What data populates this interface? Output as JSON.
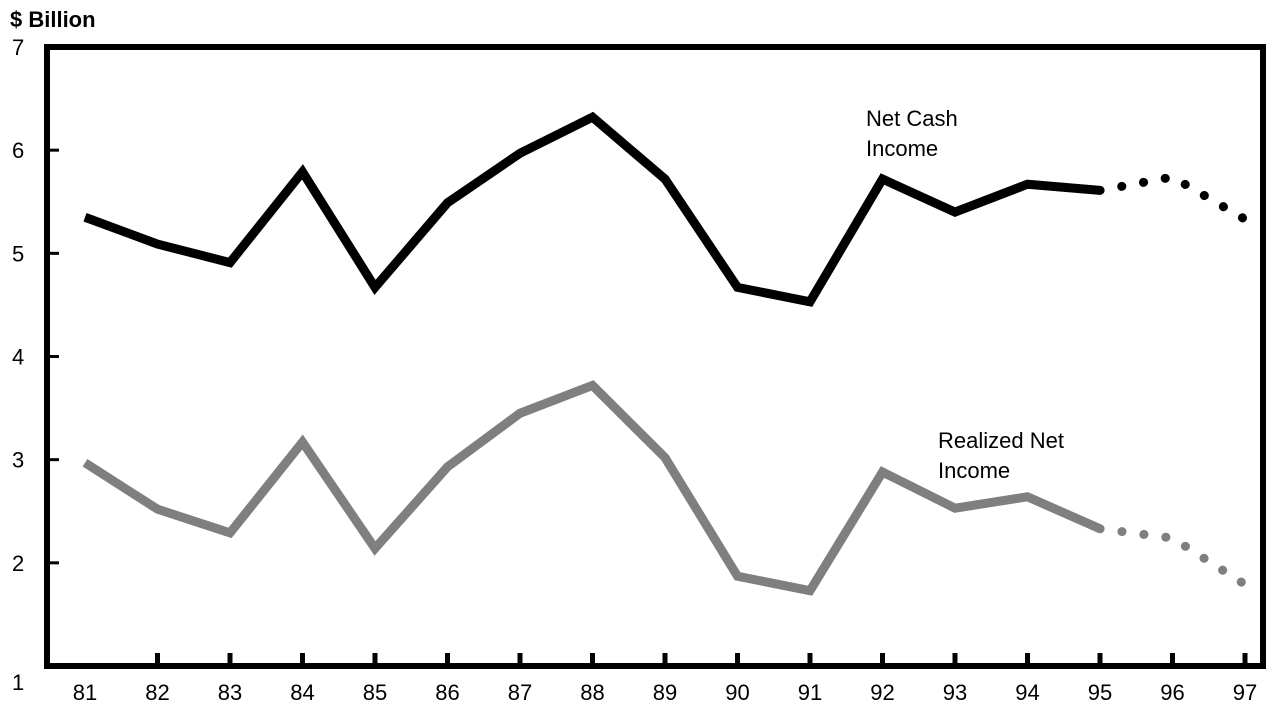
{
  "chart_data": {
    "type": "line",
    "ylabel": "$ Billion",
    "xlabel": "",
    "title": "",
    "ylim": [
      1,
      7
    ],
    "yticks": [
      "1",
      "2",
      "3",
      "4",
      "5",
      "6",
      "7"
    ],
    "x": [
      "81",
      "82",
      "83",
      "84",
      "85",
      "86",
      "87",
      "88",
      "89",
      "90",
      "91",
      "92",
      "93",
      "94",
      "95",
      "96",
      "97"
    ],
    "projection_start": "95",
    "grid": false,
    "series": [
      {
        "name": "Net Cash Income",
        "label_lines": [
          "Net Cash",
          "Income"
        ],
        "color": "#000000",
        "values": [
          5.35,
          5.09,
          4.91,
          5.79,
          4.67,
          5.49,
          5.97,
          6.32,
          5.72,
          4.67,
          4.53,
          5.72,
          5.4,
          5.67,
          5.61,
          5.74,
          5.33
        ]
      },
      {
        "name": "Realized Net Income",
        "label_lines": [
          "Realized Net",
          "Income"
        ],
        "color": "#7f7f7f",
        "values": [
          2.97,
          2.52,
          2.29,
          3.17,
          2.14,
          2.93,
          3.45,
          3.72,
          3.02,
          1.87,
          1.73,
          2.88,
          2.53,
          2.64,
          2.33,
          2.24,
          1.79
        ]
      }
    ]
  }
}
